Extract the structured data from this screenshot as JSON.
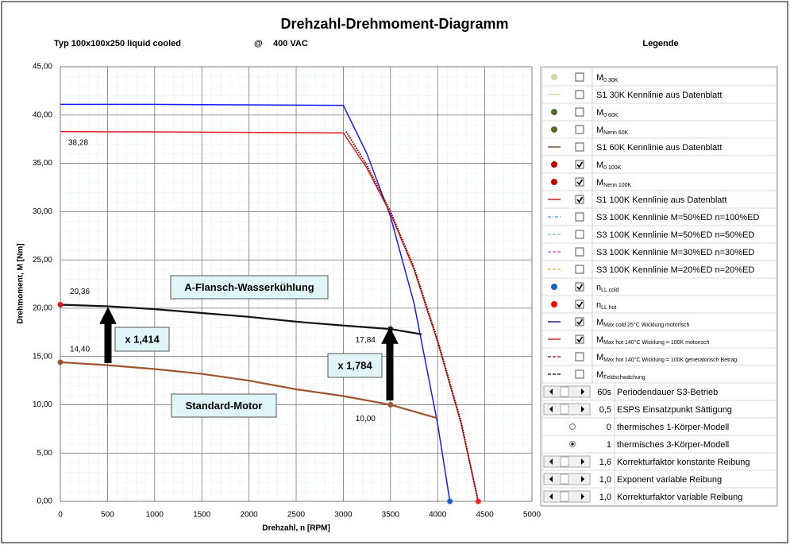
{
  "chart_data": {
    "type": "line",
    "title": "Drehzahl-Drehmoment-Diagramm",
    "subtitle": "Typ 100x100x250 liquid cooled",
    "subtitle_at": "@",
    "subtitle_voltage": "400 VAC",
    "xlabel": "Drehzahl,  n [RPM]",
    "ylabel": "Drehmoment,  M [Nm]",
    "xlim": [
      0,
      5000
    ],
    "xticks": [
      0,
      500,
      1000,
      1500,
      2000,
      2500,
      3000,
      3500,
      4000,
      4500,
      5000
    ],
    "ylim": [
      0,
      45
    ],
    "yticks": [
      {
        "value": 0,
        "label": "0,00"
      },
      {
        "value": 5,
        "label": "5,00"
      },
      {
        "value": 10,
        "label": "10,00"
      },
      {
        "value": 15,
        "label": "15,00"
      },
      {
        "value": 20,
        "label": "20,00"
      },
      {
        "value": 25,
        "label": "25,00"
      },
      {
        "value": 30,
        "label": "30,00"
      },
      {
        "value": 35,
        "label": "35,00"
      },
      {
        "value": 40,
        "label": "40,00"
      },
      {
        "value": 45,
        "label": "45,00"
      }
    ],
    "grid": true,
    "series": [
      {
        "color": "#1a1aff",
        "width": 1.5,
        "x": [
          0,
          1000,
          2000,
          3000,
          3250,
          3500,
          3750,
          4000,
          4130
        ],
        "values": [
          41.1,
          41.1,
          41.05,
          41.0,
          36,
          29.5,
          20.5,
          8,
          0
        ]
      },
      {
        "color": "#e02020",
        "width": 1.5,
        "x": [
          0,
          1000,
          2000,
          3000,
          3250,
          3500,
          3750,
          4000,
          4250,
          4430
        ],
        "values": [
          38.28,
          38.25,
          38.2,
          38.15,
          34.5,
          29.8,
          24,
          16.5,
          8,
          0
        ]
      },
      {
        "color": "#700000",
        "width": 2,
        "dash": "dotted",
        "x": [
          3030,
          3250,
          3500,
          3750,
          4000,
          4250,
          4430
        ],
        "values": [
          38.3,
          34.8,
          30,
          24.2,
          16.7,
          8.2,
          0
        ]
      },
      {
        "color": "#111111",
        "width": 2.2,
        "x": [
          0,
          500,
          1000,
          1500,
          2000,
          2500,
          3000,
          3500,
          3830
        ],
        "values": [
          20.36,
          20.2,
          19.9,
          19.5,
          19.1,
          18.6,
          18.2,
          17.84,
          17.3
        ]
      },
      {
        "color": "#a0522d",
        "width": 2.2,
        "x": [
          0,
          500,
          1000,
          1500,
          2000,
          2500,
          3000,
          3500,
          4000
        ],
        "values": [
          14.4,
          14.1,
          13.7,
          13.2,
          12.5,
          11.6,
          10.9,
          10,
          8.6
        ]
      }
    ],
    "points": [
      {
        "x": 0,
        "value": 38.28,
        "label": "38,28",
        "marker": false
      },
      {
        "x": 0,
        "value": 20.36,
        "label": "20,36",
        "color": "#e8161b",
        "marker": true
      },
      {
        "x": 0,
        "value": 14.4,
        "label": "14,40",
        "color": "#a0522d",
        "marker": true
      },
      {
        "x": 3500,
        "value": 17.84,
        "label": "17,84",
        "color": "#222222",
        "marker": true
      },
      {
        "x": 3500,
        "value": 10,
        "label": "10,00",
        "color": "#a0522d",
        "marker": true
      },
      {
        "x": 4130,
        "value": 0,
        "color": "#1f5fd0",
        "marker": true
      },
      {
        "x": 4430,
        "value": 0,
        "color": "#ff2020",
        "marker": true
      }
    ],
    "annotations": [
      "A-Flansch-Wasserkühlung",
      "Standard-Motor",
      "x 1,414",
      "x 1,784"
    ]
  },
  "legend_panel": {
    "title": "Legende",
    "rows": [
      {
        "kind": "dot",
        "color": "#c8d8a0",
        "checked": false,
        "text": "M",
        "sub": "0 30K"
      },
      {
        "kind": "line",
        "color": "#d8cfa0",
        "checked": false,
        "text": "S1 30K Kennlinie aus Datenblatt"
      },
      {
        "kind": "dot",
        "color": "#556b2f",
        "checked": false,
        "text": "M",
        "sub": "0 60K"
      },
      {
        "kind": "dot",
        "color": "#556b2f",
        "checked": false,
        "text": "M",
        "sub": "Nenn 60K"
      },
      {
        "kind": "line",
        "color": "#5a3a1a",
        "checked": false,
        "text": "S1 60K Kennlinie aus Datenblatt"
      },
      {
        "kind": "dot",
        "color": "#c00000",
        "checked": true,
        "text": "M",
        "sub": "0 100K"
      },
      {
        "kind": "dot",
        "color": "#c00000",
        "checked": true,
        "text": "M",
        "sub": "Nenn 100K"
      },
      {
        "kind": "line",
        "color": "#c00000",
        "checked": true,
        "text": "S1 100K Kennlinie aus Datenblatt"
      },
      {
        "kind": "dashdot",
        "color": "#4a90d9",
        "checked": false,
        "text": "S3 100K Kennlinie M=50%ED n=100%ED"
      },
      {
        "kind": "dash",
        "color": "#7ab0d8",
        "checked": false,
        "text": "S3 100K Kennlinie M=50%ED n=50%ED"
      },
      {
        "kind": "dash",
        "color": "#cc44cc",
        "checked": false,
        "text": "S3 100K Kennlinie M=30%ED n=30%ED"
      },
      {
        "kind": "dash",
        "color": "#e0b020",
        "checked": false,
        "text": "S3 100K Kennlinie M=20%ED n=20%ED"
      },
      {
        "kind": "dot",
        "color": "#1f5fbf",
        "checked": true,
        "text": "n",
        "sub": "LL cold"
      },
      {
        "kind": "dot",
        "color": "#ff0000",
        "checked": true,
        "text": "n",
        "sub": "LL hot"
      },
      {
        "kind": "line",
        "color": "#000080",
        "checked": true,
        "text": "M",
        "sub": "Max cold 25°C Wicklung motorisch"
      },
      {
        "kind": "line",
        "color": "#c00000",
        "checked": true,
        "text": "M",
        "sub": "Max hot 140°C Wicklung = 100K motorisch"
      },
      {
        "kind": "dash",
        "color": "#8b0000",
        "checked": false,
        "text": "M",
        "sub": "Max hot 140°C Wicklung = 100K generatorisch Betrag"
      },
      {
        "kind": "dash",
        "color": "#000000",
        "checked": false,
        "text": "M",
        "sub": "Feldschwächung"
      }
    ],
    "controls": [
      {
        "kind": "scroll",
        "value": "60s",
        "text": "Periodendauer S3-Betrieb"
      },
      {
        "kind": "scroll",
        "value": "0,5",
        "text": "ESPS Einsatzpunkt Sättigung"
      },
      {
        "kind": "radio",
        "selected": false,
        "value": "0",
        "text": "thermisches 1-Körper-Modell"
      },
      {
        "kind": "radio",
        "selected": true,
        "value": "1",
        "text": "thermisches 3-Körper-Modell"
      },
      {
        "kind": "scroll",
        "value": "1,6",
        "text": "Korrekturfaktor konstante Reibung"
      },
      {
        "kind": "scroll",
        "value": "1,0",
        "text": "Exponent variable Reibung"
      },
      {
        "kind": "scroll",
        "value": "1,0",
        "text": "Korrekturfaktor variable Reibung"
      }
    ]
  }
}
